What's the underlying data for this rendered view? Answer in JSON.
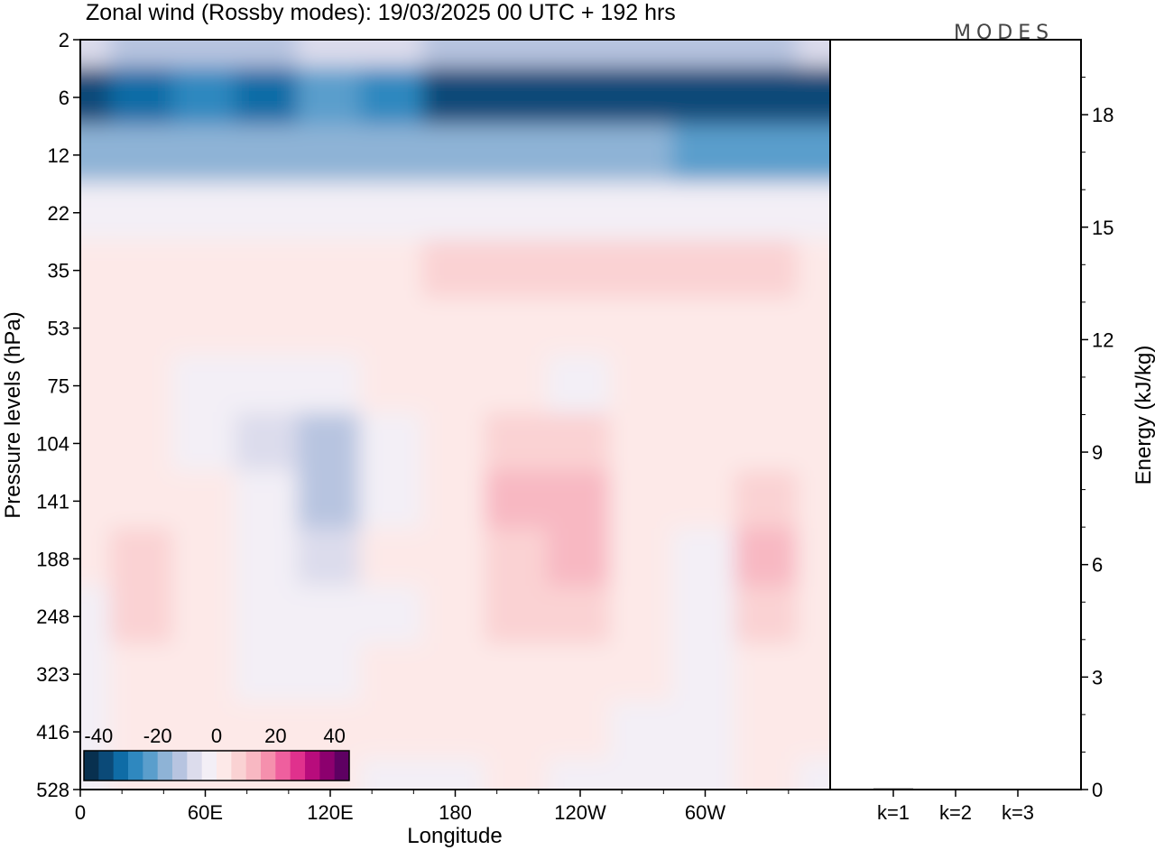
{
  "chart_data": {
    "type": "heatmap",
    "title": "Zonal wind (Rossby modes):  19/03/2025  00 UTC  + 192 hrs",
    "logo": "MODES",
    "xlabel": "Longitude",
    "ylabel": "Pressure levels (hPa)",
    "x_ticks": [
      "0",
      "60E",
      "120E",
      "180",
      "120W",
      "60W"
    ],
    "x_tick_lons": [
      0,
      60,
      120,
      180,
      240,
      300
    ],
    "xlim": [
      0,
      360
    ],
    "y_levels": [
      "2",
      "6",
      "12",
      "22",
      "35",
      "53",
      "75",
      "104",
      "141",
      "188",
      "248",
      "323",
      "416",
      "528"
    ],
    "y_scale": "categorical",
    "colorbar": {
      "ticks": [
        "-40",
        "-20",
        "0",
        "20",
        "40"
      ],
      "values": [
        -40,
        -20,
        0,
        20,
        40
      ],
      "colors": [
        "#08304f",
        "#0b4a78",
        "#0f6ca6",
        "#2f88bf",
        "#5a9ecc",
        "#8eb3d6",
        "#b7c4e0",
        "#dcdcec",
        "#f3eff6",
        "#fde9e8",
        "#fad2d3",
        "#f8b8c2",
        "#f590ad",
        "#ef5f9e",
        "#e0318d",
        "#b80c7c",
        "#8c006e",
        "#5e0062"
      ]
    },
    "energy_panel": {
      "ylabel": "Energy (kJ/kg)",
      "ylim": [
        0,
        20
      ],
      "y_ticks": [
        "0",
        "3",
        "6",
        "9",
        "12",
        "15",
        "18"
      ],
      "y_tick_values": [
        0,
        3,
        6,
        9,
        12,
        15,
        18
      ],
      "categories": [
        "k=1",
        "k=2",
        "k=3"
      ],
      "values": [
        0.03,
        0.02,
        0.02
      ]
    },
    "field": {
      "layers": [
        {
          "p": "2",
          "u": [
            -9,
            -11,
            -12,
            -11,
            -9,
            -10,
            -12,
            -13,
            -14,
            -14,
            -13,
            -12,
            -10
          ]
        },
        {
          "p": "6",
          "u": [
            -36,
            -33,
            -30,
            -33,
            -22,
            -26,
            -36,
            -37,
            -37,
            -37,
            -39,
            -40,
            -40
          ]
        },
        {
          "p": "12",
          "u": [
            -19,
            -18,
            -17,
            -18,
            -18,
            -18,
            -19,
            -20,
            -20,
            -20,
            -21,
            -21,
            -21
          ]
        },
        {
          "p": "22",
          "u": [
            -4,
            -4,
            -3,
            -4,
            -4,
            -5,
            -5,
            -5,
            -5,
            -5,
            -5,
            -4,
            -4
          ]
        },
        {
          "p": "35",
          "u": [
            4,
            4,
            4,
            1,
            4,
            4,
            5,
            5,
            5,
            5,
            5,
            5,
            4
          ]
        },
        {
          "p": "53",
          "u": [
            4,
            3,
            1,
            1,
            3,
            3,
            4,
            4,
            3,
            4,
            4,
            4,
            4
          ]
        },
        {
          "p": "75",
          "u": [
            1,
            0,
            -2,
            -2,
            -1,
            1,
            3,
            2,
            -1,
            0,
            1,
            1,
            1
          ]
        },
        {
          "p": "104",
          "u": [
            1,
            1,
            -3,
            -8,
            -13,
            -4,
            1,
            9,
            5,
            1,
            0,
            4,
            1
          ]
        },
        {
          "p": "141",
          "u": [
            2,
            4,
            0,
            -4,
            -11,
            -1,
            2,
            11,
            13,
            2,
            0,
            8,
            2
          ]
        },
        {
          "p": "188",
          "u": [
            1,
            8,
            1,
            -2,
            -7,
            0,
            3,
            9,
            12,
            3,
            -1,
            11,
            1
          ]
        },
        {
          "p": "248",
          "u": [
            -1,
            6,
            1,
            -1,
            -4,
            -1,
            1,
            7,
            5,
            2,
            -1,
            8,
            1
          ]
        },
        {
          "p": "323",
          "u": [
            -2,
            3,
            0,
            -1,
            -2,
            0,
            0,
            3,
            2,
            1,
            -1,
            4,
            0
          ]
        },
        {
          "p": "416",
          "u": [
            -2,
            1,
            0,
            1,
            0,
            0,
            0,
            1,
            0,
            -1,
            -2,
            1,
            0
          ]
        },
        {
          "p": "528",
          "u": [
            -2,
            0,
            0,
            1,
            0,
            -1,
            -1,
            0,
            -2,
            -1,
            -2,
            0,
            -1
          ]
        }
      ],
      "lons": [
        0,
        30,
        60,
        90,
        120,
        150,
        180,
        210,
        240,
        270,
        300,
        330,
        360
      ]
    }
  }
}
